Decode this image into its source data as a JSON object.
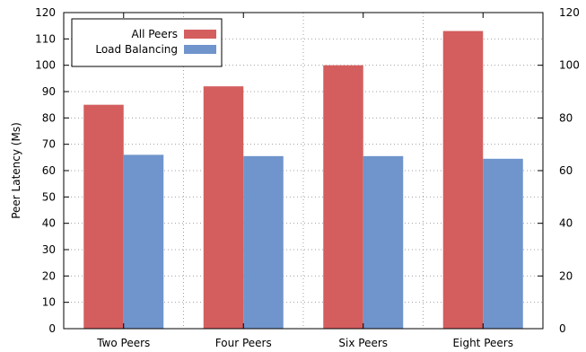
{
  "chart_data": {
    "type": "bar",
    "title": "",
    "xlabel": "",
    "ylabel": "Peer Latency (Ms)",
    "ylim": [
      0,
      120
    ],
    "yticks": [
      0,
      10,
      20,
      30,
      40,
      50,
      60,
      70,
      80,
      90,
      100,
      110,
      120
    ],
    "y2ticks": [
      0,
      20,
      40,
      60,
      80,
      100,
      120
    ],
    "categories": [
      "Two Peers",
      "Four Peers",
      "Six Peers",
      "Eight Peers"
    ],
    "series": [
      {
        "name": "All Peers",
        "color": "#d45e5e",
        "values": [
          85,
          92,
          100,
          113
        ]
      },
      {
        "name": "Load Balancing",
        "color": "#7094cc",
        "values": [
          66,
          65.5,
          65.5,
          64.5
        ]
      }
    ],
    "grid": true,
    "legend_position": "top-left"
  }
}
